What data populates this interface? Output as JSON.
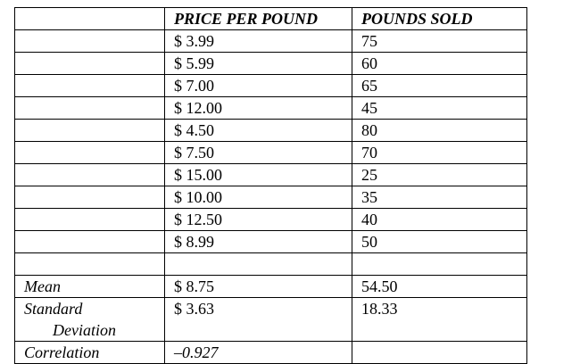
{
  "table": {
    "headers": [
      "",
      "PRICE PER POUND",
      "POUNDS SOLD"
    ],
    "rows": [
      {
        "price": "$ 3.99",
        "pounds": "75"
      },
      {
        "price": "$ 5.99",
        "pounds": "60"
      },
      {
        "price": "$ 7.00",
        "pounds": "65"
      },
      {
        "price": "$ 12.00",
        "pounds": "45"
      },
      {
        "price": "$ 4.50",
        "pounds": "80"
      },
      {
        "price": "$ 7.50",
        "pounds": "70"
      },
      {
        "price": "$ 15.00",
        "pounds": "25"
      },
      {
        "price": "$ 10.00",
        "pounds": "35"
      },
      {
        "price": "$ 12.50",
        "pounds": "40"
      },
      {
        "price": "$ 8.99",
        "pounds": "50"
      }
    ],
    "summary": {
      "mean": {
        "label": "Mean",
        "price": "$ 8.75",
        "pounds": "54.50"
      },
      "std": {
        "label_line1": "Standard",
        "label_line2": "Deviation",
        "price": "$ 3.63",
        "pounds": "18.33"
      },
      "correlation": {
        "label": "Correlation",
        "value": "–0.927"
      }
    }
  }
}
